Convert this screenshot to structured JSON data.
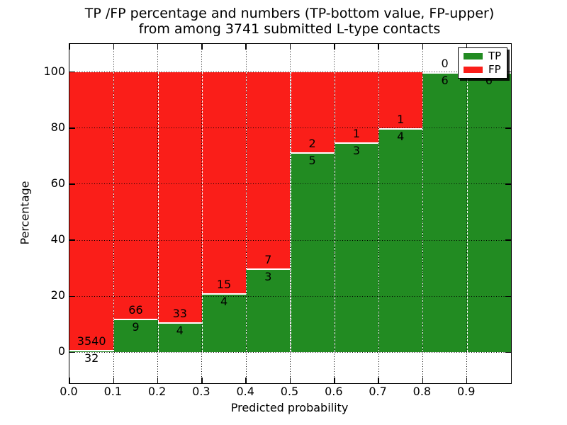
{
  "figure": {
    "title_line1": "TP /FP percentage and numbers (TP-bottom value, FP-upper)",
    "title_line2": "from among 3741 submitted L-type contacts",
    "xlabel": "Predicted probability",
    "ylabel": "Percentage"
  },
  "legend": {
    "position": "upper right",
    "items": [
      {
        "label": "TP",
        "color": "#228B22"
      },
      {
        "label": "FP",
        "color": "#FA1E19"
      }
    ]
  },
  "chart_data": {
    "type": "bar",
    "stacked": true,
    "normalized": "each bin scaled to 100% (TP bottom, FP top), raw counts shown as bar labels",
    "title": "TP /FP percentage and numbers (TP-bottom value, FP-upper) from among 3741 submitted L-type contacts",
    "xlabel": "Predicted probability",
    "ylabel": "Percentage",
    "total_submitted_contacts": 3741,
    "bin_width": 0.1,
    "bin_starts": [
      0.0,
      0.1,
      0.2,
      0.3,
      0.4,
      0.5,
      0.6,
      0.7,
      0.8,
      0.9
    ],
    "categories": [
      "0.0-0.1",
      "0.1-0.2",
      "0.2-0.3",
      "0.3-0.4",
      "0.4-0.5",
      "0.5-0.6",
      "0.6-0.7",
      "0.7-0.8",
      "0.8-0.9",
      "0.9-1.0"
    ],
    "series": [
      {
        "name": "TP",
        "color": "#228B22",
        "counts": [
          32,
          9,
          4,
          4,
          3,
          5,
          3,
          4,
          6,
          6
        ]
      },
      {
        "name": "FP",
        "color": "#FA1E19",
        "counts": [
          3540,
          66,
          33,
          15,
          7,
          2,
          1,
          1,
          0,
          0
        ]
      }
    ],
    "tp_percent_of_bin": [
      0.9,
      12.0,
      10.8,
      21.1,
      30.0,
      71.4,
      75.0,
      80.0,
      100.0,
      100.0
    ],
    "xlim": [
      0,
      1
    ],
    "ylim": [
      -11,
      110
    ],
    "yticks": [
      0,
      20,
      40,
      60,
      80,
      100
    ],
    "ytick_labels": [
      "0",
      "20",
      "40",
      "60",
      "80",
      "100"
    ],
    "xtick_values": [
      0.0,
      0.1,
      0.2,
      0.3,
      0.4,
      0.5,
      0.6,
      0.7,
      0.8,
      0.9
    ],
    "xtick_labels": [
      "0.0",
      "0.1",
      "0.2",
      "0.3",
      "0.4",
      "0.5",
      "0.6",
      "0.7",
      "0.8",
      "0.9"
    ],
    "grid": "dotted black, both axes, drawn above bars",
    "bar_edge_style": "white dashed segment edges",
    "legend_position": "upper right"
  }
}
